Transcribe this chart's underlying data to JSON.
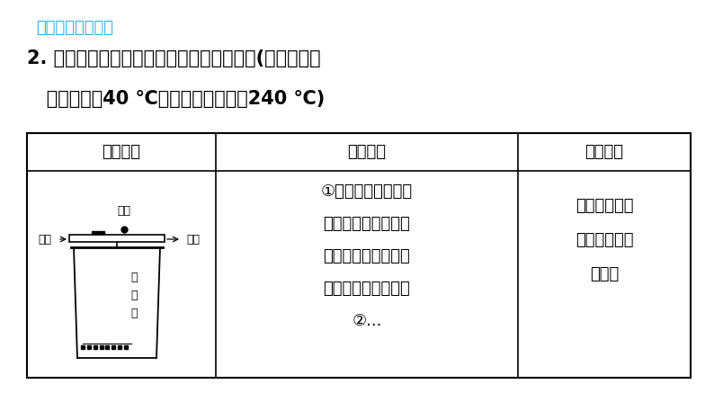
{
  "bg_color": "#ffffff",
  "header_color": "#29ABE2",
  "header_text": "阶段核心方法专训",
  "title_line1": "2. 小明同学设计以下实验探究燃烧的条件。(已知：白磷",
  "title_line2": "   的着火点是40 ℃，红磷的着火点是240 ℃)",
  "table_headers": [
    "实验装置",
    "实验过程",
    "实验现象"
  ],
  "col2_text_lines": [
    "①取一烧杯，加入适",
    "量的生石灰，再分别",
    "取少量白磷、红磷放",
    "在烧杯上的铜片上；",
    "②..."
  ],
  "col3_text_lines": [
    "一会儿白磷发",
    "生燃烧，红磷",
    "不燃烧"
  ],
  "label_honglin": "红磷",
  "label_bailin": "白磷",
  "label_tongpian": "铜片",
  "label_shishigui": [
    "生",
    "石",
    "灰"
  ]
}
